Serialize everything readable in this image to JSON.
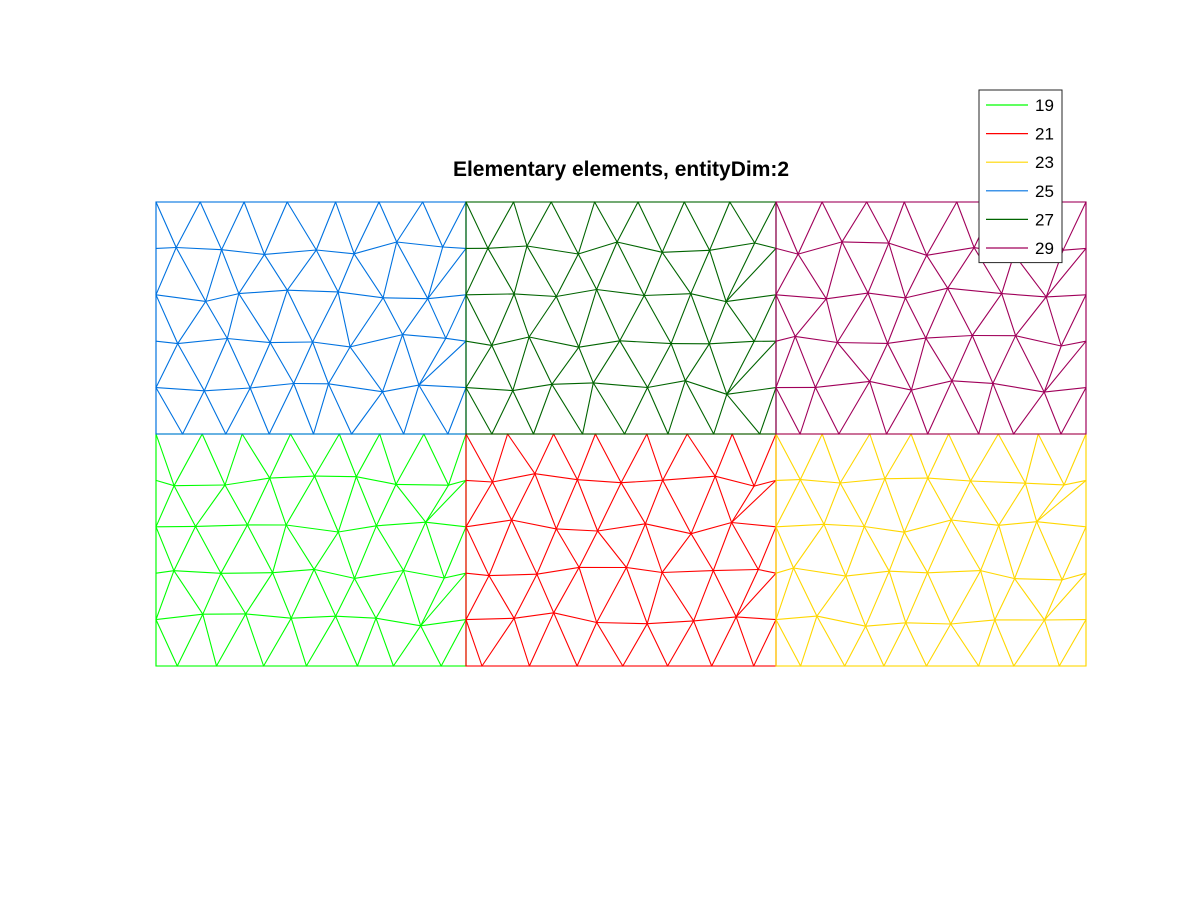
{
  "chart_data": {
    "type": "mesh",
    "title": "Elementary elements, entityDim:2",
    "grid": false,
    "legend_position": "top-right",
    "legend": [
      {
        "label": "19",
        "color": "#00ff00"
      },
      {
        "label": "21",
        "color": "#ff0000"
      },
      {
        "label": "23",
        "color": "#ffd700"
      },
      {
        "label": "25",
        "color": "#0072e0"
      },
      {
        "label": "27",
        "color": "#006400"
      },
      {
        "label": "29",
        "color": "#a0005a"
      }
    ],
    "blocks": [
      {
        "entity": "19",
        "row": "bottom",
        "column": 1
      },
      {
        "entity": "21",
        "row": "bottom",
        "column": 2
      },
      {
        "entity": "23",
        "row": "bottom",
        "column": 3
      },
      {
        "entity": "25",
        "row": "top",
        "column": 1
      },
      {
        "entity": "27",
        "row": "top",
        "column": 2
      },
      {
        "entity": "29",
        "row": "top",
        "column": 3
      }
    ]
  }
}
